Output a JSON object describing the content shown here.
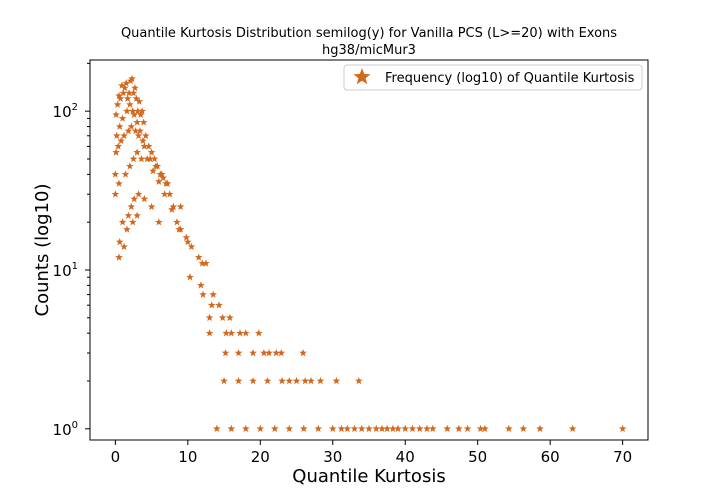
{
  "chart_data": {
    "type": "scatter",
    "title": "Quantile Kurtosis Distribution semilog(y) for Vanilla PCS (L>=20) with Exons",
    "subtitle": "hg38/micMur3",
    "xlabel": "Quantile Kurtosis",
    "ylabel": "Counts (log10)",
    "xlim": [
      -3.5,
      73.5
    ],
    "ylim": [
      0.85,
      210
    ],
    "y_scale": "log",
    "x_ticks": [
      0,
      10,
      20,
      30,
      40,
      50,
      60,
      70
    ],
    "x_tick_labels": [
      "0",
      "10",
      "20",
      "30",
      "40",
      "50",
      "60",
      "70"
    ],
    "y_ticks": [
      1,
      10,
      100
    ],
    "y_tick_labels": [
      "10",
      "10",
      "10"
    ],
    "y_tick_exponents": [
      "0",
      "1",
      "2"
    ],
    "marker": "star",
    "color": "#d2691e",
    "grid": false,
    "legend_position": "top-right",
    "series": [
      {
        "name": "Frequency (log10) of Quantile Kurtosis",
        "x": [
          0.1,
          0.3,
          0.5,
          0.7,
          0.9,
          1.1,
          1.3,
          1.5,
          1.7,
          1.9,
          2.1,
          2.3,
          2.5,
          2.7,
          2.9,
          3.1,
          3.3,
          3.5,
          3.7,
          3.9,
          4.2,
          4.6,
          5.0,
          5.4,
          5.8,
          6.2,
          6.6,
          7.0,
          7.5,
          8.0,
          8.5,
          9.0,
          9.8,
          10.5,
          11.5,
          12.5,
          0.2,
          0.6,
          1.0,
          1.6,
          2.0,
          2.4,
          2.6,
          3.0,
          3.4,
          3.8,
          4.4,
          5.2,
          6.0,
          6.8,
          7.8,
          8.8,
          10.0,
          12.0,
          0.0,
          0.1,
          0.4,
          0.8,
          1.2,
          1.8,
          2.2,
          2.8,
          3.2,
          4.0,
          4.8,
          5.6,
          6.4,
          7.2,
          9.0,
          0.0,
          0.5,
          1.4,
          2.0,
          2.5,
          3.0,
          3.6,
          1.0,
          1.8,
          2.2,
          2.6,
          3.2,
          4.0,
          5.0,
          6.0,
          0.6,
          1.6,
          2.4,
          3.0,
          0.5,
          1.2,
          14.0,
          16.0,
          18.0,
          20.0,
          22.0,
          24.0,
          26.0,
          28.0,
          30.0,
          31.2,
          32.0,
          33.0,
          34.0,
          35.0,
          36.0,
          36.8,
          37.5,
          38.3,
          39.0,
          40.0,
          41.0,
          42.0,
          43.0,
          43.8,
          45.8,
          47.4,
          48.6,
          50.4,
          51.0,
          54.3,
          56.3,
          58.6,
          63.1,
          70.0,
          15.0,
          17.0,
          19.0,
          21.0,
          23.0,
          24.0,
          25.0,
          26.2,
          27.0,
          28.3,
          30.5,
          33.6,
          15.2,
          17.0,
          19.0,
          20.5,
          21.2,
          22.2,
          22.9,
          25.9,
          13.0,
          15.3,
          16.0,
          17.2,
          18.0,
          19.8,
          13.0,
          14.8,
          15.8,
          13.3,
          14.3,
          12.1,
          13.5,
          11.8,
          10.3
        ],
        "y": [
          95,
          110,
          125,
          120,
          145,
          130,
          140,
          150,
          120,
          130,
          155,
          160,
          130,
          140,
          120,
          100,
          115,
          95,
          100,
          85,
          70,
          60,
          55,
          50,
          45,
          40,
          38,
          35,
          30,
          25,
          20,
          18,
          16,
          14,
          12,
          11,
          70,
          80,
          90,
          100,
          110,
          100,
          95,
          85,
          75,
          65,
          50,
          42,
          36,
          30,
          24,
          18,
          15,
          11,
          40,
          55,
          60,
          65,
          70,
          75,
          80,
          75,
          70,
          60,
          50,
          45,
          40,
          35,
          25,
          30,
          35,
          40,
          45,
          50,
          55,
          50,
          20,
          22,
          25,
          28,
          30,
          28,
          25,
          20,
          15,
          18,
          20,
          22,
          12,
          14,
          1,
          1,
          1,
          1,
          1,
          1,
          1,
          1,
          1,
          1,
          1,
          1,
          1,
          1,
          1,
          1,
          1,
          1,
          1,
          1,
          1,
          1,
          1,
          1,
          1,
          1,
          1,
          1,
          1,
          1,
          1,
          1,
          1,
          1,
          2,
          2,
          2,
          2,
          2,
          2,
          2,
          2,
          2,
          2,
          2,
          2,
          3,
          3,
          3,
          3,
          3,
          3,
          3,
          3,
          4,
          4,
          4,
          4,
          4,
          4,
          5,
          5,
          5,
          6,
          6,
          7,
          7,
          8,
          9
        ]
      }
    ]
  }
}
